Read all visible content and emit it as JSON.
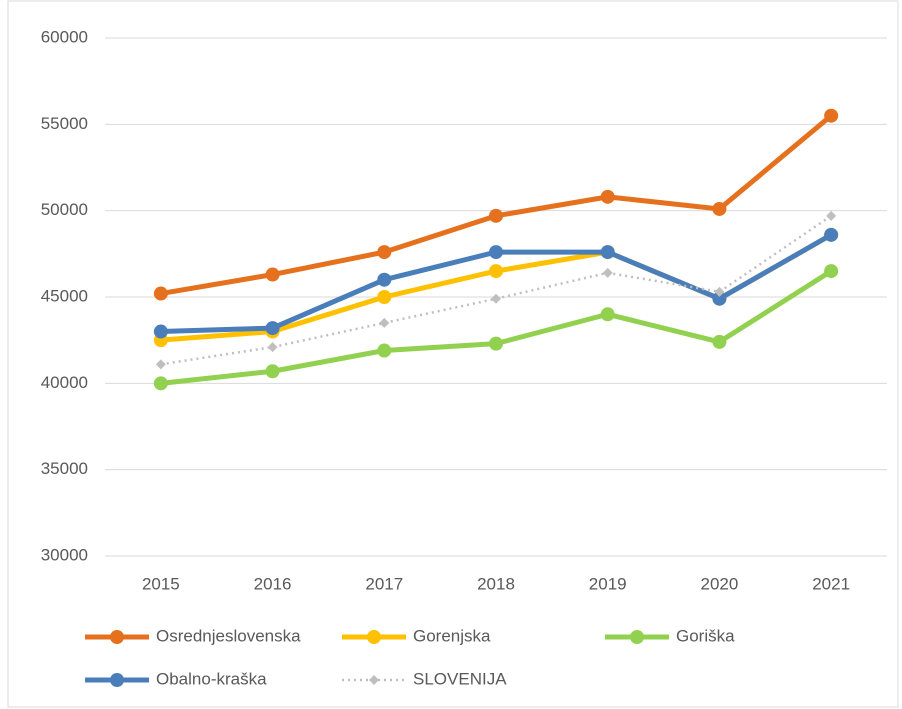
{
  "chart_data": {
    "type": "line",
    "categories": [
      "2015",
      "2016",
      "2017",
      "2018",
      "2019",
      "2020",
      "2021"
    ],
    "series": [
      {
        "name": "Osrednjeslovenska",
        "color": "#e5701d",
        "marker": "circle",
        "line_style": "solid",
        "values": [
          45200,
          46300,
          47600,
          49700,
          50800,
          50100,
          55500
        ]
      },
      {
        "name": "Gorenjska",
        "color": "#ffc000",
        "marker": "circle",
        "line_style": "solid",
        "values": [
          42500,
          43000,
          45000,
          46500,
          47600,
          44900,
          48600
        ]
      },
      {
        "name": "Goriška",
        "color": "#92d050",
        "marker": "circle",
        "line_style": "solid",
        "values": [
          40000,
          40700,
          41900,
          42300,
          44000,
          42400,
          46500
        ]
      },
      {
        "name": "Obalno-kraška",
        "color": "#4a7ebb",
        "marker": "circle",
        "line_style": "solid",
        "values": [
          43000,
          43200,
          46000,
          47600,
          47600,
          44900,
          48600
        ]
      },
      {
        "name": "SLOVENIJA",
        "color": "#bfbfbf",
        "marker": "diamond",
        "line_style": "dotted",
        "values": [
          41100,
          42100,
          43500,
          44900,
          46400,
          45300,
          49700
        ]
      }
    ],
    "ylim": [
      30000,
      60000
    ],
    "yticks": [
      30000,
      35000,
      40000,
      45000,
      50000,
      55000,
      60000
    ],
    "grid": true,
    "legend": "bottom"
  }
}
